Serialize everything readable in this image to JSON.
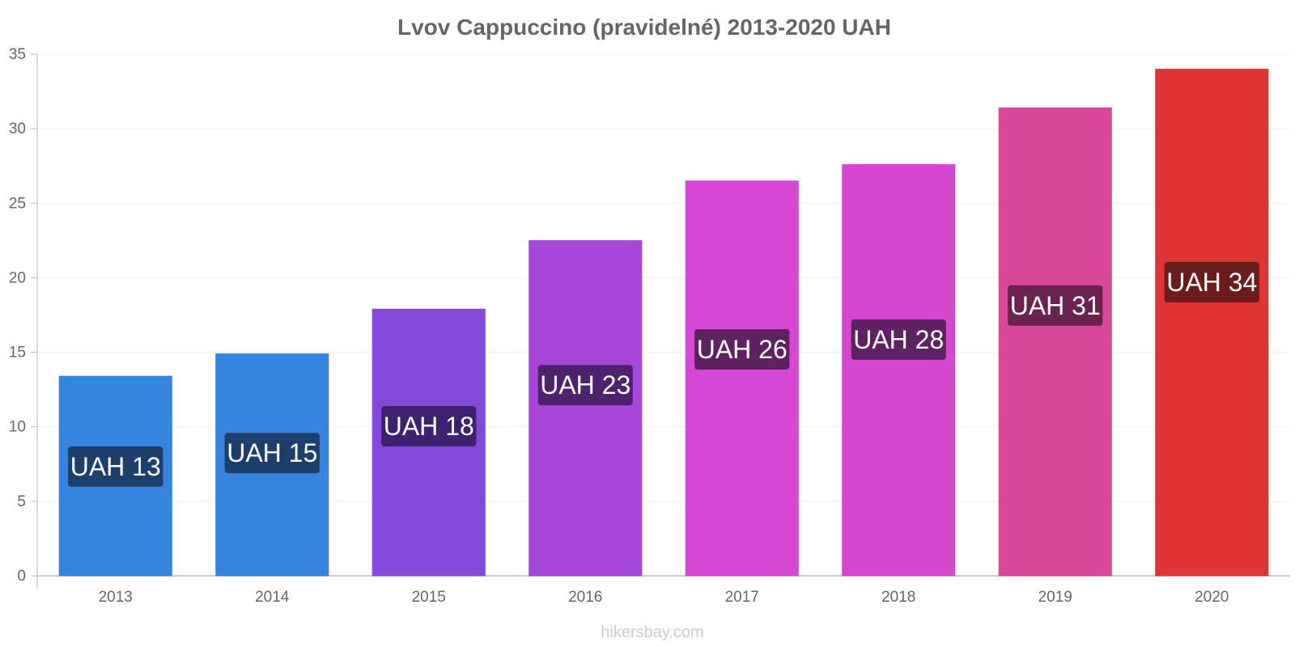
{
  "chart_data": {
    "type": "bar",
    "title": "Lvov Cappuccino (pravidelné) 2013-2020 UAH",
    "xlabel": "",
    "ylabel": "",
    "ylim": [
      0,
      35
    ],
    "yticks": [
      0,
      5,
      10,
      15,
      20,
      25,
      30,
      35
    ],
    "grid": true,
    "categories": [
      "2013",
      "2014",
      "2015",
      "2016",
      "2017",
      "2018",
      "2019",
      "2020"
    ],
    "values": [
      13.4,
      14.9,
      17.9,
      22.5,
      26.5,
      27.6,
      31.4,
      34.0
    ],
    "data_labels": [
      "UAH 13",
      "UAH 15",
      "UAH 18",
      "UAH 23",
      "UAH 26",
      "UAH 28",
      "UAH 31",
      "UAH 34"
    ],
    "bar_colors": [
      "#3584e0",
      "#3584e0",
      "#8549d9",
      "#a647d9",
      "#d647d6",
      "#d647d0",
      "#d9479a",
      "#e03535"
    ],
    "label_bg_colors": [
      "#1c3f6b",
      "#1c3f6b",
      "#3e2270",
      "#4f226e",
      "#5e2263",
      "#5e2263",
      "#6b2250",
      "#6b1c1c"
    ]
  },
  "watermark": "hikersbay.com"
}
